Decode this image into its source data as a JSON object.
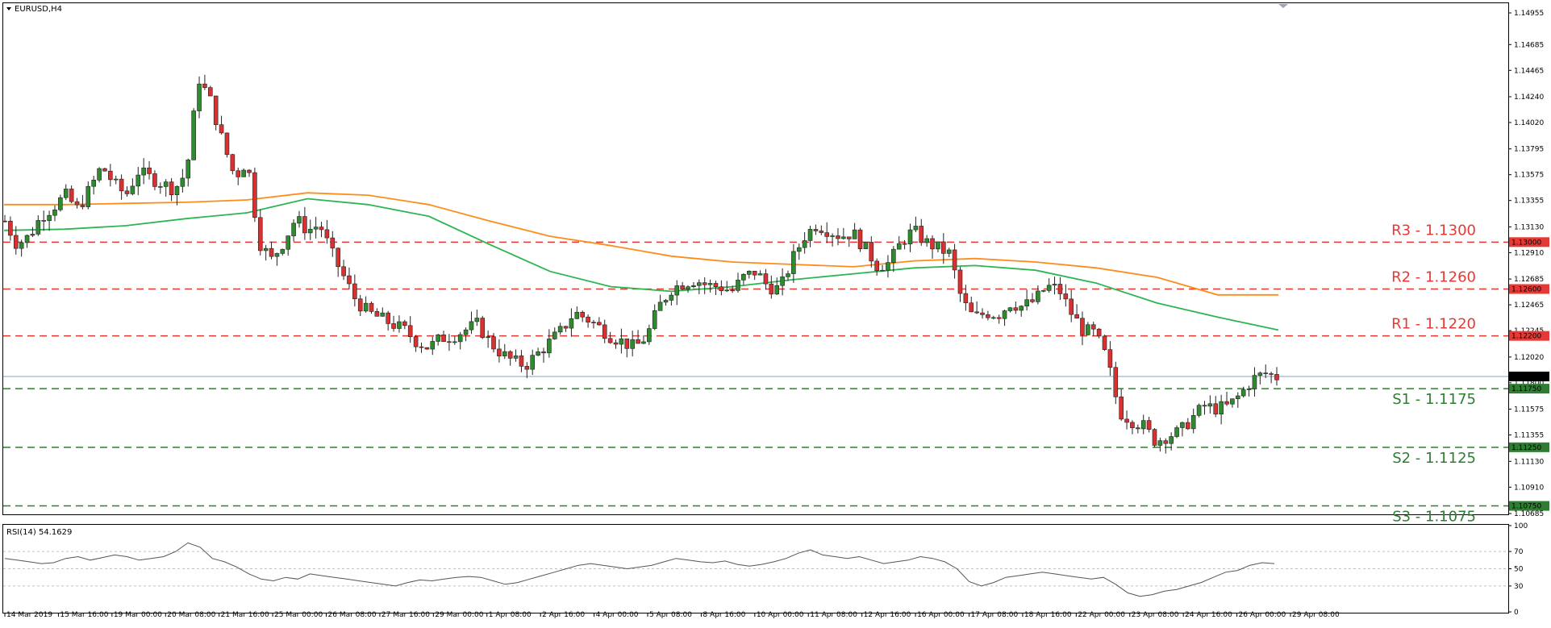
{
  "chart_data": [
    {
      "type": "candlestick",
      "title": "EURUSD,H4",
      "ylim": [
        1.10685,
        1.14955
      ],
      "y_ticks": [
        "1.14955",
        "1.14685",
        "1.14465",
        "1.14240",
        "1.14020",
        "1.13795",
        "1.13575",
        "1.13355",
        "1.13130",
        "1.12910",
        "1.12685",
        "1.12465",
        "1.12245",
        "1.12020",
        "1.11800",
        "1.11575",
        "1.11355",
        "1.11130",
        "1.10910",
        "1.10685"
      ],
      "x_ticks": [
        "14 Mar 2019",
        "15 Mar 16:00",
        "19 Mar 00:00",
        "20 Mar 08:00",
        "21 Mar 16:00",
        "25 Mar 00:00",
        "26 Mar 08:00",
        "27 Mar 16:00",
        "29 Mar 00:00",
        "1 Apr 08:00",
        "2 Apr 16:00",
        "4 Apr 00:00",
        "5 Apr 08:00",
        "8 Apr 16:00",
        "10 Apr 00:00",
        "11 Apr 08:00",
        "12 Apr 16:00",
        "16 Apr 00:00",
        "17 Apr 08:00",
        "18 Apr 16:00",
        "22 Apr 00:00",
        "23 Apr 08:00",
        "24 Apr 16:00",
        "26 Apr 00:00",
        "29 Apr 08:00"
      ],
      "close_path": [
        1.1318,
        1.1298,
        1.1305,
        1.1322,
        1.133,
        1.134,
        1.1328,
        1.1345,
        1.1365,
        1.135,
        1.134,
        1.136,
        1.1355,
        1.135,
        1.1345,
        1.136,
        1.144,
        1.142,
        1.1385,
        1.1355,
        1.137,
        1.13,
        1.1285,
        1.13,
        1.132,
        1.131,
        1.1315,
        1.129,
        1.127,
        1.125,
        1.124,
        1.1235,
        1.123,
        1.1225,
        1.1215,
        1.121,
        1.1218,
        1.122,
        1.1225,
        1.123,
        1.1215,
        1.1205,
        1.1198,
        1.1195,
        1.1205,
        1.1215,
        1.1225,
        1.124,
        1.1235,
        1.1228,
        1.122,
        1.1215,
        1.121,
        1.122,
        1.1245,
        1.126,
        1.1265,
        1.1268,
        1.1263,
        1.1262,
        1.1258,
        1.127,
        1.1275,
        1.1262,
        1.126,
        1.1285,
        1.1305,
        1.1315,
        1.131,
        1.1305,
        1.1308,
        1.1295,
        1.128,
        1.1282,
        1.13,
        1.131,
        1.13,
        1.1295,
        1.129,
        1.125,
        1.1235,
        1.124,
        1.1238,
        1.1248,
        1.1245,
        1.125,
        1.1262,
        1.126,
        1.124,
        1.1225,
        1.1222,
        1.12,
        1.1155,
        1.1148,
        1.1143,
        1.113,
        1.1135,
        1.1138,
        1.115,
        1.116,
        1.1158,
        1.116,
        1.117,
        1.1183,
        1.1188,
        1.1185
      ],
      "series": [
        {
          "name": "",
          "color": "#2db552",
          "values": [
            1.131,
            1.1311,
            1.1314,
            1.132,
            1.1325,
            1.1337,
            1.1332,
            1.1322,
            1.1298,
            1.1275,
            1.1262,
            1.1258,
            1.1262,
            1.1268,
            1.1273,
            1.1278,
            1.128,
            1.1276,
            1.1265,
            1.1248,
            1.1236,
            1.1225
          ]
        },
        {
          "name": "",
          "color": "#ff8c1a",
          "values": [
            1.1332,
            1.1332,
            1.1333,
            1.1334,
            1.1336,
            1.1342,
            1.134,
            1.1332,
            1.1318,
            1.1305,
            1.1297,
            1.1288,
            1.1283,
            1.1281,
            1.1279,
            1.1284,
            1.1286,
            1.1283,
            1.1278,
            1.127,
            1.1255,
            1.1255
          ]
        }
      ],
      "levels": [
        {
          "label": "R3 - 1.1300",
          "value": 1.13,
          "tag": "1.13000",
          "kind": "resistance"
        },
        {
          "label": "R2 - 1.1260",
          "value": 1.126,
          "tag": "1.12600",
          "kind": "resistance"
        },
        {
          "label": "R1 - 1.1220",
          "value": 1.122,
          "tag": "1.12200",
          "kind": "resistance"
        },
        {
          "label": "S1 - 1.1175",
          "value": 1.1175,
          "tag": "1.11750",
          "kind": "support"
        },
        {
          "label": "S2 - 1.1125",
          "value": 1.1125,
          "tag": "1.11250",
          "kind": "support"
        },
        {
          "label": "S3 - 1.1075",
          "value": 1.1075,
          "tag": "1.10750",
          "kind": "support"
        }
      ],
      "current_price": {
        "value": 1.11854,
        "tag": "1.11854"
      },
      "colors": {
        "bull": "#2e8b2e",
        "bear": "#d93030",
        "resistance": "#e53935",
        "support": "#2e7d32",
        "price_line": "#8aa0b8"
      }
    },
    {
      "type": "line",
      "title": "RSI(14) 54.1629",
      "ylim": [
        0,
        100
      ],
      "y_ticks": [
        "100",
        "70",
        "50",
        "30",
        "0"
      ],
      "levels": [
        70,
        50,
        30
      ],
      "values": [
        62,
        60,
        58,
        56,
        57,
        62,
        64,
        60,
        63,
        66,
        64,
        60,
        62,
        64,
        70,
        80,
        75,
        62,
        58,
        52,
        44,
        38,
        36,
        40,
        38,
        44,
        42,
        40,
        38,
        36,
        34,
        32,
        30,
        34,
        37,
        36,
        38,
        40,
        41,
        40,
        36,
        32,
        34,
        38,
        42,
        46,
        50,
        54,
        56,
        54,
        52,
        50,
        52,
        54,
        58,
        62,
        60,
        58,
        57,
        59,
        55,
        53,
        55,
        58,
        62,
        68,
        72,
        66,
        64,
        62,
        64,
        60,
        56,
        58,
        60,
        64,
        62,
        58,
        50,
        35,
        30,
        34,
        40,
        42,
        44,
        46,
        44,
        42,
        40,
        38,
        40,
        32,
        22,
        18,
        20,
        24,
        26,
        30,
        34,
        40,
        46,
        48,
        54,
        57,
        56
      ],
      "color": "#555555"
    }
  ]
}
